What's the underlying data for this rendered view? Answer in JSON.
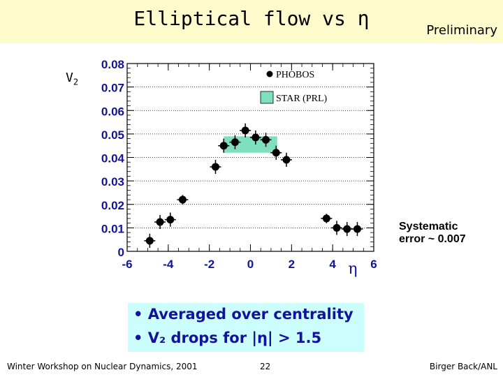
{
  "slide": {
    "title": "Elliptical flow vs η",
    "preliminary": "Preliminary",
    "systematic_line1": "Systematic",
    "systematic_line2": "error ~ 0.007",
    "bullets": [
      "Averaged over centrality",
      "V₂ drops for |η| > 1.5"
    ],
    "footer_left": "Winter Workshop on Nuclear Dynamics, 2001",
    "footer_center": "22",
    "footer_right": "Birger Back/ANL"
  },
  "chart_data": {
    "type": "scatter",
    "ylabel": "V",
    "ylabel_sub": "2",
    "xlabel": "η",
    "xlim": [
      -6,
      6
    ],
    "ylim": [
      0,
      0.08
    ],
    "x_ticks": [
      "-6",
      "-4",
      "-2",
      "0",
      "2",
      "4",
      "6"
    ],
    "y_ticks": [
      "0",
      "0.01",
      "0.02",
      "0.03",
      "0.04",
      "0.05",
      "0.06",
      "0.07",
      "0.08"
    ],
    "grid": "horizontal dotted",
    "legend": [
      {
        "label": "PHOBOS",
        "marker": "circle",
        "color": "#000000"
      },
      {
        "label": "STAR (PRL)",
        "marker": "band",
        "color": "#7fe0c0"
      }
    ],
    "series": [
      {
        "name": "PHOBOS",
        "x": [
          -4.9,
          -4.4,
          -3.9,
          -3.3,
          -1.7,
          -1.3,
          -0.75,
          -0.25,
          0.25,
          0.75,
          1.25,
          1.75,
          3.7,
          4.2,
          4.7,
          5.2
        ],
        "y": [
          0.0045,
          0.0125,
          0.0135,
          0.022,
          0.036,
          0.045,
          0.0465,
          0.0515,
          0.0485,
          0.0475,
          0.042,
          0.039,
          0.014,
          0.01,
          0.0095,
          0.0095
        ],
        "err": [
          0.003,
          0.003,
          0.003,
          0.002,
          0.003,
          0.003,
          0.003,
          0.003,
          0.003,
          0.003,
          0.003,
          0.003,
          0.002,
          0.003,
          0.003,
          0.003
        ]
      },
      {
        "name": "STAR (PRL)",
        "x_range": [
          -1.3,
          1.3
        ],
        "y_range": [
          0.042,
          0.049
        ]
      }
    ]
  }
}
